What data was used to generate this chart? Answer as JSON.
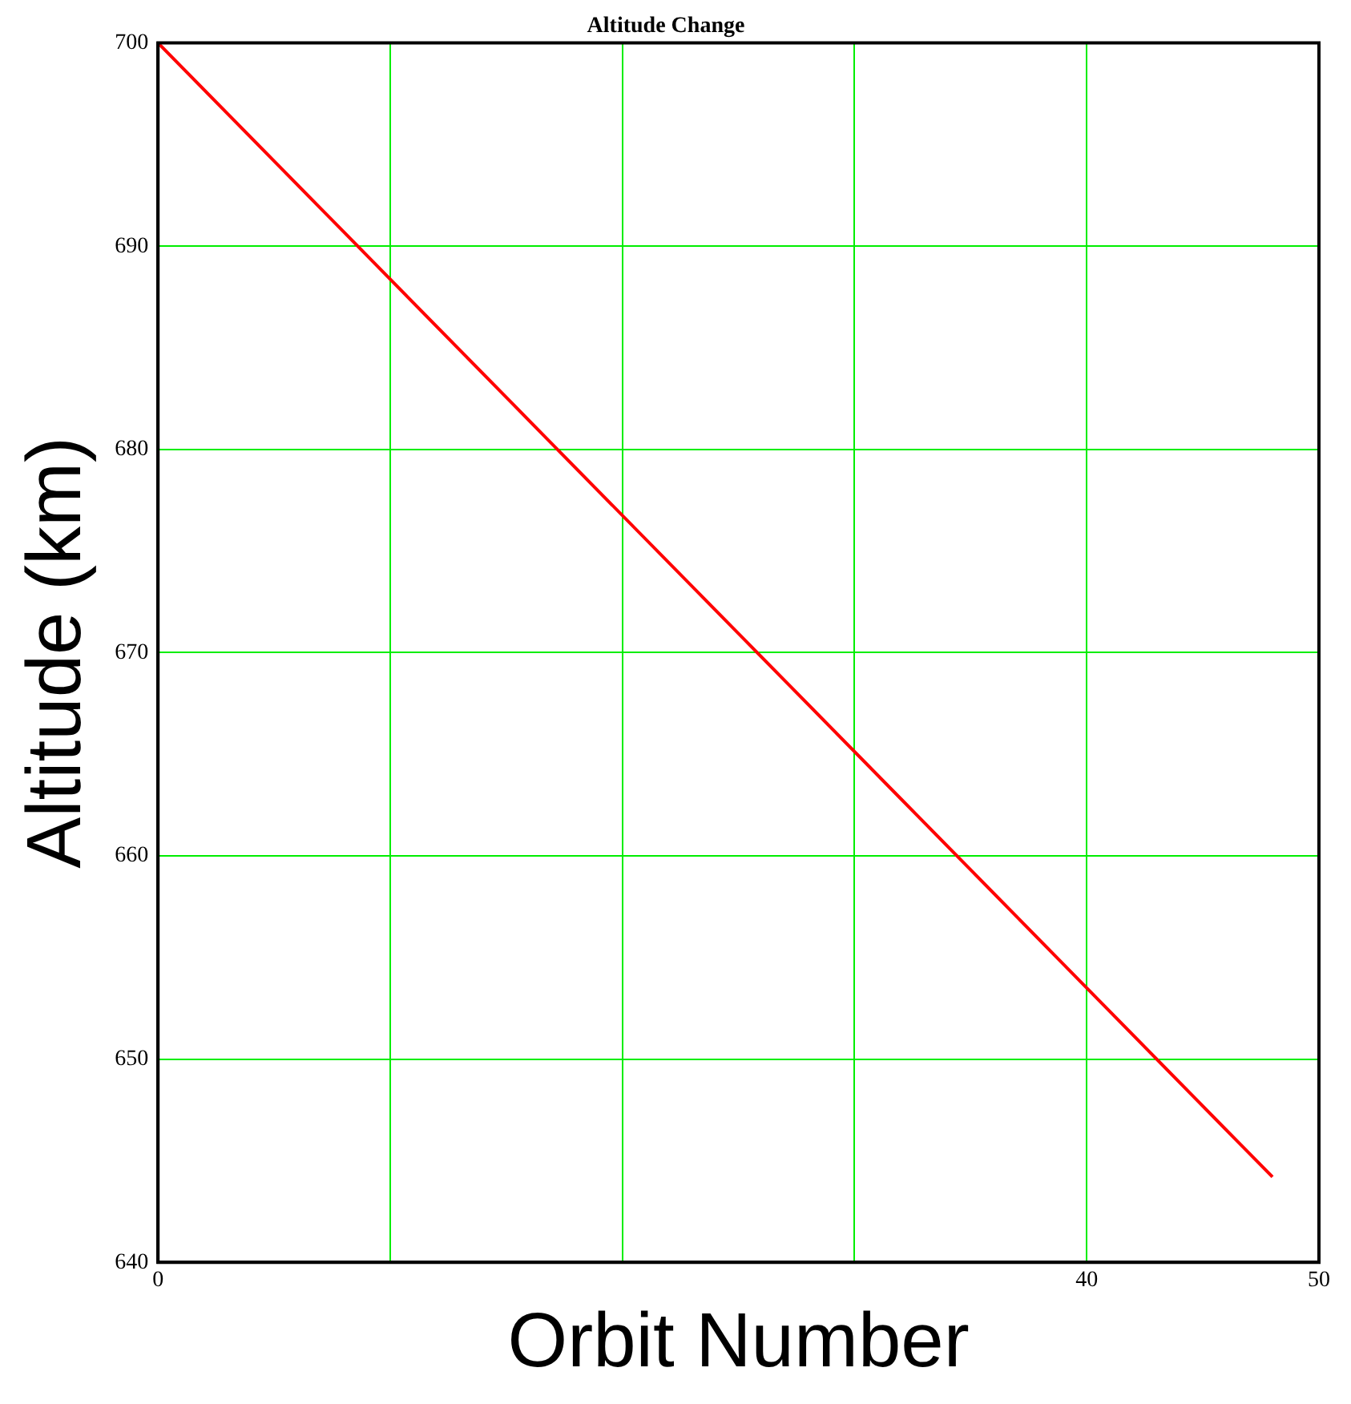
{
  "chart_data": {
    "type": "line",
    "title": "Altitude Change",
    "xlabel": "Orbit Number",
    "ylabel": "Altitude (km)",
    "x": [
      0,
      8,
      16,
      24,
      32,
      40,
      48
    ],
    "series": [
      {
        "color": "#ff0000",
        "values": [
          700,
          690.7,
          681.4,
          672.1,
          662.8,
          653.5,
          644.2
        ]
      }
    ],
    "xlim": [
      0,
      50
    ],
    "xticks": [
      0,
      {
        "value": 10,
        "label": null
      },
      {
        "value": 20,
        "label": null
      },
      {
        "value": 30,
        "label": null
      },
      40,
      50
    ],
    "ylim": [
      640,
      700
    ],
    "yticks": [
      640,
      650,
      660,
      670,
      680,
      690,
      700
    ],
    "grid": true,
    "marker": "none",
    "line_style": "solid",
    "legend": false
  }
}
